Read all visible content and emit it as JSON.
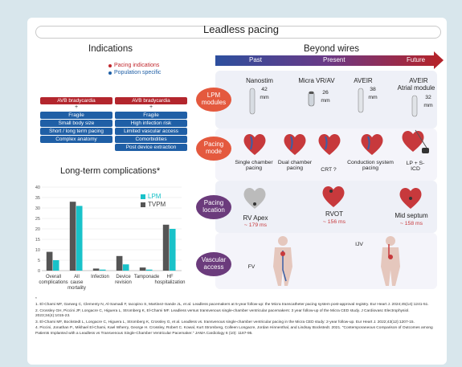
{
  "title": "Leadless pacing",
  "indications": {
    "heading": "Indications",
    "legend": [
      {
        "label": "Pacing indications",
        "color": "#c0272d"
      },
      {
        "label": "Population specific",
        "color": "#1f5fa6"
      }
    ],
    "left_col": [
      "AVB bradycardia",
      "Fragile",
      "Small body size",
      "Short / long term pacing",
      "Complex anatomy"
    ],
    "right_col": [
      "AVB bradycardia",
      "Fragile",
      "High infection risk",
      "Limited vascular access",
      "Comorbidities",
      "Post device extraction"
    ],
    "plus": "+"
  },
  "chart_data": {
    "type": "bar",
    "title": "Long-term complications*",
    "categories": [
      "Overall complications",
      "All cause mortality",
      "Infection",
      "Device revision",
      "Tamponade",
      "HF hospitalization"
    ],
    "series": [
      {
        "name": "LPM",
        "values": [
          5,
          31,
          0.5,
          3,
          0.5,
          20
        ],
        "color": "#19c2c9"
      },
      {
        "name": "TVPM",
        "values": [
          9,
          33,
          1,
          7,
          1.5,
          22
        ],
        "color": "#555555"
      }
    ],
    "ylim": [
      0,
      40
    ],
    "yticks": [
      0,
      5,
      10,
      15,
      20,
      25,
      30,
      35,
      40
    ],
    "grid": true,
    "legend": "top-right"
  },
  "beyond": {
    "heading": "Beyond wires",
    "eras": [
      "Past",
      "Present",
      "Future"
    ],
    "rows": {
      "modules": "LPM modules",
      "mode": "Pacing mode",
      "location": "Pacing location",
      "vascular": "Vascular access"
    },
    "devices": [
      {
        "name": "Nanostim",
        "size": "42",
        "unit": "mm"
      },
      {
        "name": "Micra VR/AV",
        "size": "26",
        "unit": "mm"
      },
      {
        "name": "AVEIR",
        "size": "38",
        "unit": "mm"
      },
      {
        "name": "AVEIR",
        "name2": "Atrial module",
        "size": "32",
        "unit": "mm"
      }
    ],
    "modes": [
      "Single chamber pacing",
      "Dual chamber pacing",
      "CRT ?",
      "Conduction system pacing",
      "LP + S-ICD"
    ],
    "locations": [
      {
        "name": "RV Apex",
        "ms": "179 ms"
      },
      {
        "name": "RVOT",
        "ms": "156 ms"
      },
      {
        "name": "Mid septum",
        "ms": "158 ms"
      }
    ],
    "access": [
      "FV",
      "IJV"
    ]
  },
  "references": {
    "star": "*",
    "items": [
      "1. El-Chami MF, Garweg C, Clementy N, Al-Samadi F, Iacopino S, Martinez-Sande JL, et al. Leadless pacemakers at 5-year follow-up: the Micra transcatheter pacing system post-approval registry. Eur Heart J. 2024;45(14):1241-51.",
      "2. Crossley GH, Piccini JP, Longacre C, Higuera L, Stromberg K, El-Chami MF. Leadless versus transvenous single-chamber ventricular pacemakers: 3 year follow-up of the Micra CED study. J Cardiovasc Electrophysiol. 2023;34(4):1015-23.",
      "3. El-Chami MF, Bockstedt L, Longacre C, Higuera L, Stromberg K, Crossley G, et al. Leadless vs. transvenous single-chamber ventricular pacing in the Micra CED study: 2-year follow-up. Eur Heart J. 2022;43(12):1207-15.",
      "4. Piccini, Jonathan P., Mikhael El-Chami, Kael Wherry, George H. Crossley, Robert C. Kowal, Kurt Stromberg, Colleen Longacre, Jordan Hinnenthal, and Lindsay Bockstedt. 2021. \"Contemporaneous Comparison of Outcomes among Patients Implanted with a Leadless vs Transvenous Single-Chamber Ventricular Pacemaker.\" JAMA Cardiology 6 (10): 1187-95."
    ]
  }
}
